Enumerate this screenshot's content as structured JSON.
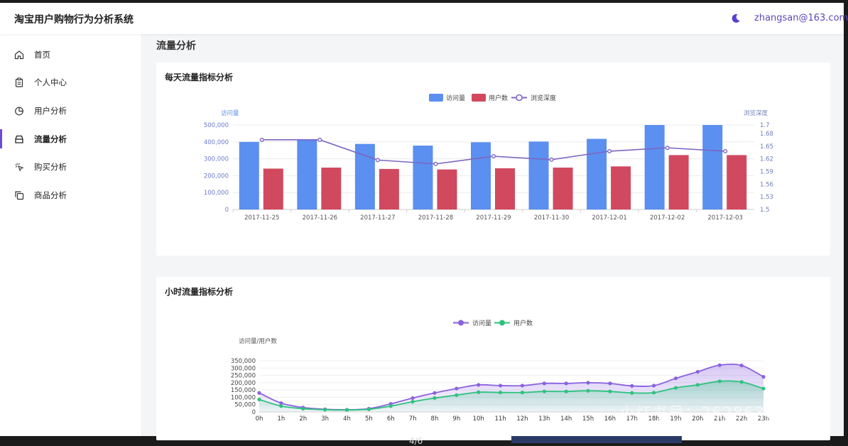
{
  "app": {
    "title": "淘宝用户购物行为分析系统",
    "user": "zhangsan@163.com"
  },
  "sidebar": {
    "items": [
      {
        "label": "首页",
        "icon": "home-icon"
      },
      {
        "label": "个人中心",
        "icon": "clipboard-icon"
      },
      {
        "label": "用户分析",
        "icon": "pie-chart-icon"
      },
      {
        "label": "流量分析",
        "icon": "tray-icon",
        "active": true
      },
      {
        "label": "购买分析",
        "icon": "pointer-click-icon"
      },
      {
        "label": "商品分析",
        "icon": "copy-icon"
      }
    ]
  },
  "page": {
    "title": "流量分析"
  },
  "footer": {
    "page_number": "4/6",
    "watermark": "小红书号：2628638449"
  },
  "chart_data": [
    {
      "type": "bar",
      "title": "每天流量指标分析",
      "categories": [
        "2017-11-25",
        "2017-11-26",
        "2017-11-27",
        "2017-11-28",
        "2017-11-29",
        "2017-11-30",
        "2017-12-01",
        "2017-12-02",
        "2017-12-03"
      ],
      "ylabel": "访问量",
      "y2label": "浏览深度",
      "ylim": [
        0,
        500000
      ],
      "y2lim": [
        1.5,
        1.7
      ],
      "yticks": [
        "0",
        "100,000",
        "200,000",
        "300,000",
        "400,000",
        "500,000"
      ],
      "y2ticks": [
        "1.5",
        "1.53",
        "1.56",
        "1.59",
        "1.62",
        "1.65",
        "1.68",
        "1.7"
      ],
      "legend_position": "top-center",
      "series": [
        {
          "name": "访问量",
          "type": "bar",
          "color": "#5b8ff0",
          "values": [
            400000,
            410000,
            388000,
            378000,
            398000,
            402000,
            418000,
            500000,
            500000
          ]
        },
        {
          "name": "用户数",
          "type": "bar",
          "color": "#d1495f",
          "values": [
            242000,
            248000,
            240000,
            237000,
            244000,
            248000,
            255000,
            322000,
            322000
          ]
        },
        {
          "name": "浏览深度",
          "type": "line",
          "color": "#7c66c2",
          "values": [
            1.665,
            1.665,
            1.617,
            1.608,
            1.626,
            1.618,
            1.638,
            1.646,
            1.638
          ]
        }
      ]
    },
    {
      "type": "area",
      "title": "小时流量指标分析",
      "categories": [
        "0h",
        "1h",
        "2h",
        "3h",
        "4h",
        "5h",
        "6h",
        "7h",
        "8h",
        "9h",
        "10h",
        "11h",
        "12h",
        "13h",
        "14h",
        "15h",
        "16h",
        "17h",
        "18h",
        "19h",
        "20h",
        "21h",
        "22h",
        "23h"
      ],
      "ylabel": "访问量/用户数",
      "ylim": [
        0,
        350000
      ],
      "yticks": [
        "0",
        "50,000",
        "100,000",
        "150,000",
        "200,000",
        "250,000",
        "300,000",
        "350,000"
      ],
      "legend_position": "top-center",
      "series": [
        {
          "name": "访问量",
          "color": "#8a62e0",
          "values": [
            130000,
            60000,
            30000,
            18000,
            15000,
            22000,
            55000,
            95000,
            130000,
            160000,
            185000,
            180000,
            180000,
            195000,
            195000,
            200000,
            195000,
            178000,
            180000,
            230000,
            275000,
            320000,
            318000,
            240000
          ]
        },
        {
          "name": "用户数",
          "color": "#2ec27e",
          "values": [
            85000,
            40000,
            22000,
            15000,
            13000,
            18000,
            40000,
            70000,
            95000,
            115000,
            135000,
            133000,
            133000,
            140000,
            140000,
            145000,
            140000,
            130000,
            132000,
            165000,
            185000,
            210000,
            205000,
            160000
          ]
        }
      ]
    }
  ]
}
